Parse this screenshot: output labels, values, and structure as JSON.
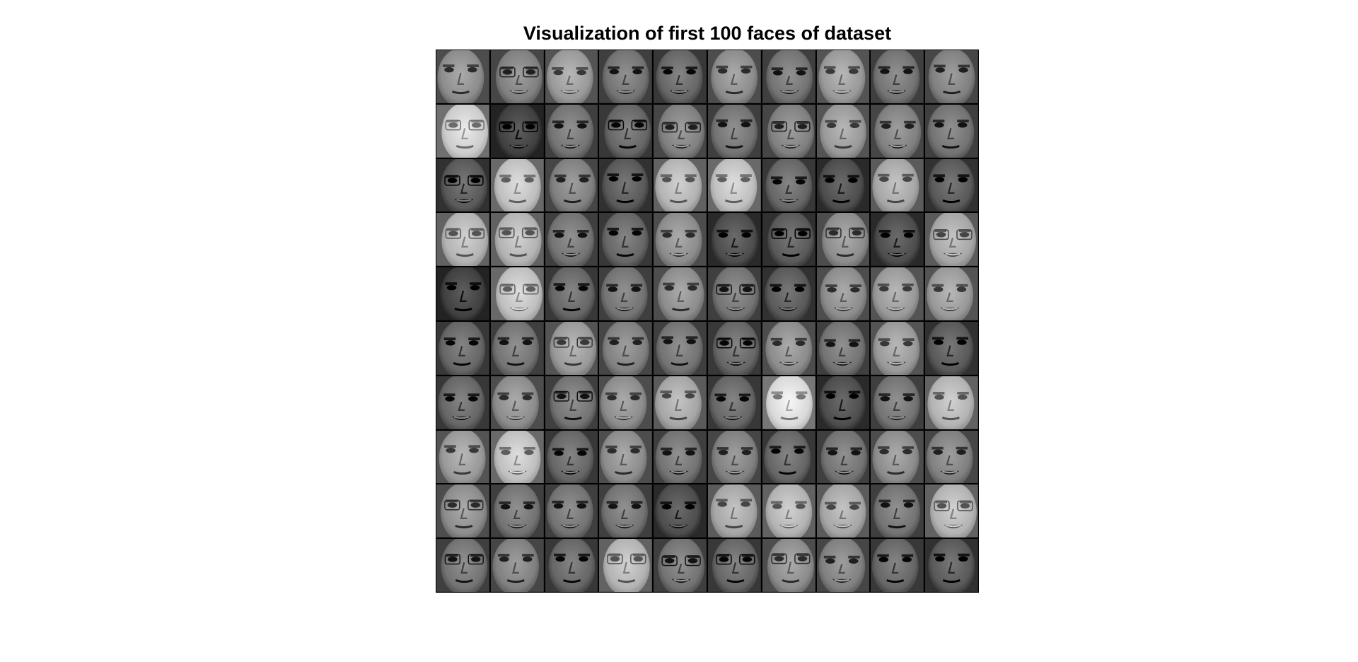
{
  "figure": {
    "title": "Visualization of first 100 faces of dataset"
  },
  "grid": {
    "rows": 10,
    "cols": 10,
    "tile_brightness": [
      0.55,
      0.5,
      0.6,
      0.45,
      0.4,
      0.55,
      0.45,
      0.6,
      0.45,
      0.5,
      0.8,
      0.25,
      0.45,
      0.4,
      0.5,
      0.45,
      0.5,
      0.6,
      0.5,
      0.45,
      0.35,
      0.75,
      0.5,
      0.35,
      0.7,
      0.75,
      0.4,
      0.3,
      0.65,
      0.35,
      0.7,
      0.7,
      0.45,
      0.4,
      0.55,
      0.3,
      0.35,
      0.55,
      0.3,
      0.65,
      0.25,
      0.75,
      0.4,
      0.45,
      0.55,
      0.45,
      0.35,
      0.55,
      0.6,
      0.6,
      0.4,
      0.45,
      0.6,
      0.5,
      0.45,
      0.4,
      0.55,
      0.45,
      0.6,
      0.35,
      0.4,
      0.55,
      0.45,
      0.55,
      0.65,
      0.4,
      0.85,
      0.3,
      0.45,
      0.7,
      0.6,
      0.75,
      0.4,
      0.55,
      0.45,
      0.5,
      0.4,
      0.45,
      0.55,
      0.5,
      0.55,
      0.45,
      0.45,
      0.45,
      0.3,
      0.65,
      0.7,
      0.65,
      0.45,
      0.7,
      0.45,
      0.5,
      0.4,
      0.7,
      0.45,
      0.4,
      0.55,
      0.5,
      0.4,
      0.35
    ]
  }
}
